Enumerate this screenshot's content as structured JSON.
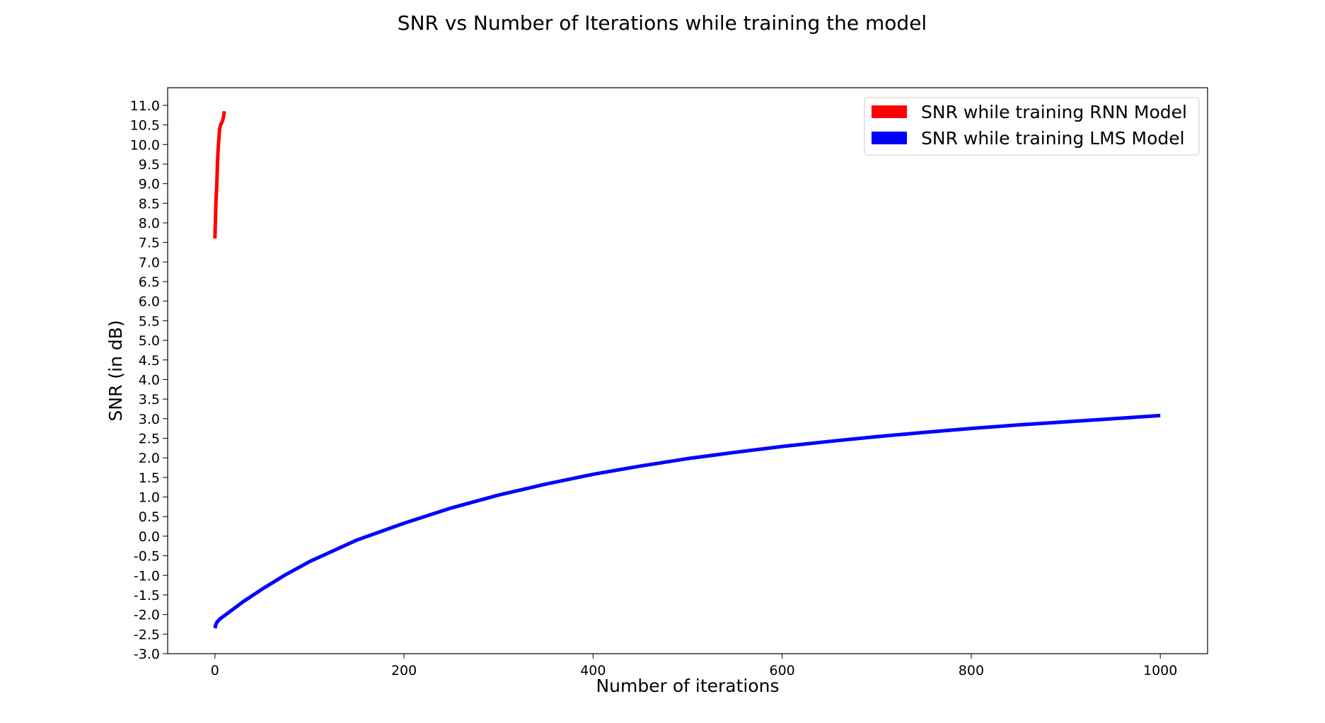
{
  "chart_data": {
    "type": "line",
    "title": "SNR vs Number of Iterations while training the model",
    "xlabel": "Number of iterations",
    "ylabel": "SNR (in dB)",
    "xlim": [
      -50,
      1050
    ],
    "ylim": [
      -3.0,
      11.45
    ],
    "xticks": [
      0,
      200,
      400,
      600,
      800,
      1000
    ],
    "xtick_labels": [
      "0",
      "200",
      "400",
      "600",
      "800",
      "1000"
    ],
    "yticks": [
      -3.0,
      -2.5,
      -2.0,
      -1.5,
      -1.0,
      -0.5,
      0.0,
      0.5,
      1.0,
      1.5,
      2.0,
      2.5,
      3.0,
      3.5,
      4.0,
      4.5,
      5.0,
      5.5,
      6.0,
      6.5,
      7.0,
      7.5,
      8.0,
      8.5,
      9.0,
      9.5,
      10.0,
      10.5,
      11.0
    ],
    "ytick_labels": [
      "-3.0",
      "-2.5",
      "-2.0",
      "-1.5",
      "-1.0",
      "-0.5",
      "0.0",
      "0.5",
      "1.0",
      "1.5",
      "2.0",
      "2.5",
      "3.0",
      "3.5",
      "4.0",
      "4.5",
      "5.0",
      "5.5",
      "6.0",
      "6.5",
      "7.0",
      "7.5",
      "8.0",
      "8.5",
      "9.0",
      "9.5",
      "10.0",
      "10.5",
      "11.0"
    ],
    "grid": false,
    "legend_position": "top-right",
    "series": [
      {
        "name": "SNR while training RNN Model",
        "color": "#ff0000",
        "x": [
          0,
          1,
          2,
          3,
          4,
          5,
          6,
          7,
          8,
          9,
          10
        ],
        "y": [
          7.6,
          8.5,
          9.0,
          9.7,
          10.1,
          10.4,
          10.5,
          10.55,
          10.6,
          10.7,
          10.85
        ]
      },
      {
        "name": "SNR while training LMS Model",
        "color": "#0000ff",
        "x": [
          0,
          1,
          2,
          5,
          10,
          20,
          30,
          50,
          75,
          100,
          150,
          200,
          250,
          300,
          350,
          400,
          450,
          500,
          550,
          600,
          650,
          700,
          750,
          800,
          850,
          900,
          950,
          1000
        ],
        "y": [
          -2.35,
          -2.25,
          -2.2,
          -2.12,
          -2.03,
          -1.85,
          -1.67,
          -1.35,
          -0.98,
          -0.65,
          -0.1,
          0.33,
          0.72,
          1.05,
          1.33,
          1.58,
          1.79,
          1.98,
          2.14,
          2.29,
          2.42,
          2.54,
          2.65,
          2.75,
          2.84,
          2.92,
          3.0,
          3.08
        ]
      }
    ]
  }
}
